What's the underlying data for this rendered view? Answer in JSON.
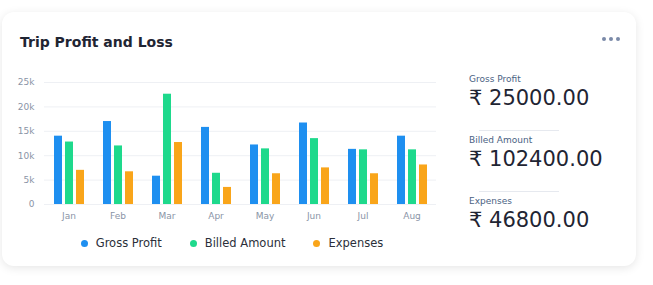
{
  "chart_data": {
    "type": "bar",
    "title": "Trip Profit and Loss",
    "categories": [
      "Jan",
      "Feb",
      "Mar",
      "Apr",
      "May",
      "Jun",
      "Jul",
      "Aug"
    ],
    "series": [
      {
        "name": "Gross Profit",
        "color": "#1e8ff0",
        "values": [
          14000,
          17000,
          5800,
          15800,
          12200,
          16700,
          11300,
          14000
        ]
      },
      {
        "name": "Billed Amount",
        "color": "#1ed98c",
        "values": [
          12800,
          12000,
          22600,
          6400,
          11400,
          13500,
          11200,
          11200
        ]
      },
      {
        "name": "Expenses",
        "color": "#f9a51a",
        "values": [
          7000,
          6700,
          12700,
          3500,
          6300,
          7500,
          6300,
          8100
        ]
      }
    ],
    "ylim": [
      0,
      25000
    ],
    "yticks": [
      0,
      {
        "value": 5000,
        "label": "5k"
      },
      {
        "value": 10000,
        "label": "10k"
      },
      {
        "value": 15000,
        "label": "15k"
      },
      {
        "value": 20000,
        "label": "20k"
      },
      {
        "value": 25000,
        "label": "25k"
      }
    ],
    "grid": true,
    "legend": "bottom",
    "summary": [
      {
        "label": "Gross Profit",
        "value": "₹ 25000.00"
      },
      {
        "label": "Billed Amount",
        "value": "₹ 102400.00"
      },
      {
        "label": "Expenses",
        "value": "₹ 46800.00"
      }
    ]
  }
}
